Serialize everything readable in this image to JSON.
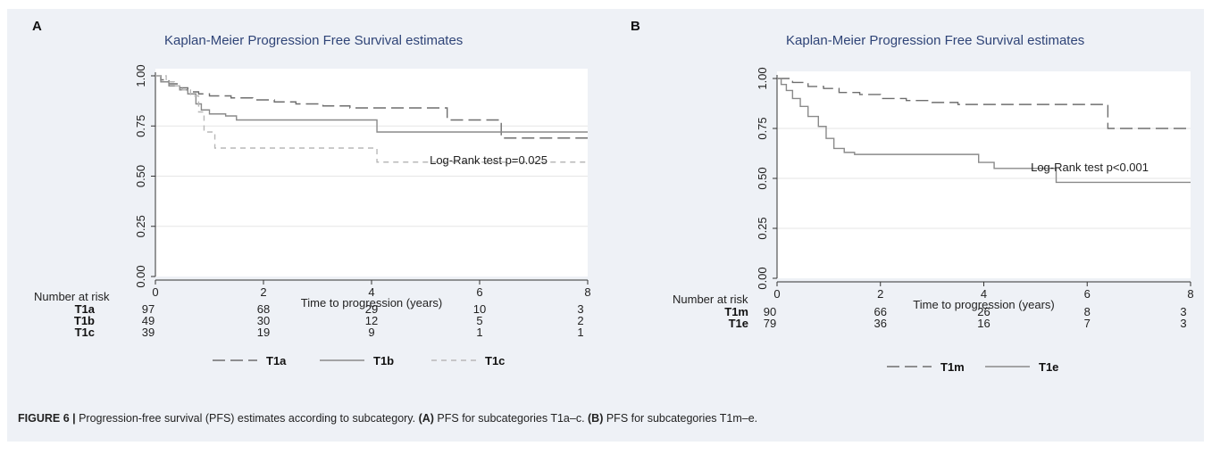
{
  "caption": {
    "label": "FIGURE 6 |",
    "text1": " Progression-free survival (PFS) estimates according to subcategory. ",
    "a_tag": "(A)",
    "text2": " PFS for subcategories T1a–c. ",
    "b_tag": "(B)",
    "text3": " PFS for subcategories T1m–e."
  },
  "chart_data": [
    {
      "panel": "A",
      "type": "line",
      "title": "Kaplan-Meier Progression Free Survival estimates",
      "xlabel": "Time to progression (years)",
      "ylabel": "",
      "xlim": [
        0,
        8
      ],
      "ylim": [
        0,
        1
      ],
      "xticks": [
        0,
        2,
        4,
        6,
        8
      ],
      "yticks": [
        "0.00",
        "0.25",
        "0.50",
        "0.75",
        "1.00"
      ],
      "grid": "horizontal",
      "annotation": "Log-Rank test p=0.025",
      "risk_table": {
        "header": "Number at risk",
        "times": [
          0,
          2,
          4,
          6,
          8
        ],
        "rows": [
          {
            "name": "T1a",
            "values": [
              "97",
              "68",
              "29",
              "10",
              "3"
            ]
          },
          {
            "name": "T1b",
            "values": [
              "49",
              "30",
              "12",
              "5",
              "2"
            ]
          },
          {
            "name": "T1c",
            "values": [
              "39",
              "19",
              "9",
              "1",
              "1"
            ]
          }
        ]
      },
      "legend": [
        "T1a",
        "T1b",
        "T1c"
      ],
      "series": [
        {
          "name": "T1a",
          "style": "longdash",
          "color": "#6e6e6e",
          "points": [
            [
              0,
              1.0
            ],
            [
              0.1,
              0.98
            ],
            [
              0.25,
              0.96
            ],
            [
              0.45,
              0.94
            ],
            [
              0.6,
              0.92
            ],
            [
              0.8,
              0.91
            ],
            [
              1.0,
              0.9
            ],
            [
              1.4,
              0.89
            ],
            [
              1.8,
              0.88
            ],
            [
              2.2,
              0.87
            ],
            [
              2.6,
              0.86
            ],
            [
              3.1,
              0.85
            ],
            [
              3.6,
              0.84
            ],
            [
              5.4,
              0.84
            ],
            [
              5.4,
              0.78
            ],
            [
              6.4,
              0.78
            ],
            [
              6.4,
              0.69
            ],
            [
              8.0,
              0.69
            ]
          ]
        },
        {
          "name": "T1b",
          "style": "solid",
          "color": "#8a8a8a",
          "points": [
            [
              0,
              1.0
            ],
            [
              0.1,
              0.97
            ],
            [
              0.25,
              0.95
            ],
            [
              0.45,
              0.93
            ],
            [
              0.6,
              0.91
            ],
            [
              0.75,
              0.86
            ],
            [
              0.85,
              0.83
            ],
            [
              1.0,
              0.81
            ],
            [
              1.3,
              0.8
            ],
            [
              1.5,
              0.78
            ],
            [
              4.1,
              0.78
            ],
            [
              4.1,
              0.72
            ],
            [
              8.0,
              0.72
            ]
          ]
        },
        {
          "name": "T1c",
          "style": "shortdash",
          "color": "#b8b8b8",
          "points": [
            [
              0,
              1.0
            ],
            [
              0.2,
              0.97
            ],
            [
              0.35,
              0.95
            ],
            [
              0.5,
              0.93
            ],
            [
              0.65,
              0.9
            ],
            [
              0.8,
              0.82
            ],
            [
              0.9,
              0.72
            ],
            [
              1.1,
              0.64
            ],
            [
              4.1,
              0.64
            ],
            [
              4.1,
              0.57
            ],
            [
              8.0,
              0.57
            ]
          ]
        }
      ]
    },
    {
      "panel": "B",
      "type": "line",
      "title": "Kaplan-Meier Progression Free Survival estimates",
      "xlabel": "Time to progression (years)",
      "ylabel": "",
      "xlim": [
        0,
        8
      ],
      "ylim": [
        0,
        1
      ],
      "xticks": [
        0,
        2,
        4,
        6,
        8
      ],
      "yticks": [
        "0.00",
        "0.25",
        "0.50",
        "0.75",
        "1.00"
      ],
      "grid": "horizontal",
      "annotation": "Log-Rank test p<0.001",
      "risk_table": {
        "header": "Number at risk",
        "times": [
          0,
          2,
          4,
          6,
          8
        ],
        "rows": [
          {
            "name": "T1m",
            "values": [
              "90",
              "66",
              "26",
              "8",
              "3"
            ]
          },
          {
            "name": "T1e",
            "values": [
              "79",
              "36",
              "16",
              "7",
              "3"
            ]
          }
        ]
      },
      "legend": [
        "T1m",
        "T1e"
      ],
      "series": [
        {
          "name": "T1m",
          "style": "longdash",
          "color": "#6e6e6e",
          "points": [
            [
              0,
              1.0
            ],
            [
              0.3,
              0.98
            ],
            [
              0.6,
              0.96
            ],
            [
              0.9,
              0.95
            ],
            [
              1.2,
              0.93
            ],
            [
              1.6,
              0.92
            ],
            [
              2.0,
              0.9
            ],
            [
              2.5,
              0.89
            ],
            [
              3.0,
              0.88
            ],
            [
              3.5,
              0.87
            ],
            [
              6.4,
              0.87
            ],
            [
              6.4,
              0.75
            ],
            [
              8.0,
              0.75
            ]
          ]
        },
        {
          "name": "T1e",
          "style": "solid",
          "color": "#8a8a8a",
          "points": [
            [
              0,
              1.0
            ],
            [
              0.08,
              0.97
            ],
            [
              0.18,
              0.94
            ],
            [
              0.3,
              0.9
            ],
            [
              0.45,
              0.86
            ],
            [
              0.6,
              0.81
            ],
            [
              0.8,
              0.76
            ],
            [
              0.95,
              0.7
            ],
            [
              1.1,
              0.65
            ],
            [
              1.3,
              0.63
            ],
            [
              1.5,
              0.62
            ],
            [
              3.9,
              0.62
            ],
            [
              3.9,
              0.58
            ],
            [
              4.2,
              0.58
            ],
            [
              4.2,
              0.55
            ],
            [
              5.4,
              0.55
            ],
            [
              5.4,
              0.48
            ],
            [
              8.0,
              0.48
            ]
          ]
        }
      ]
    }
  ]
}
